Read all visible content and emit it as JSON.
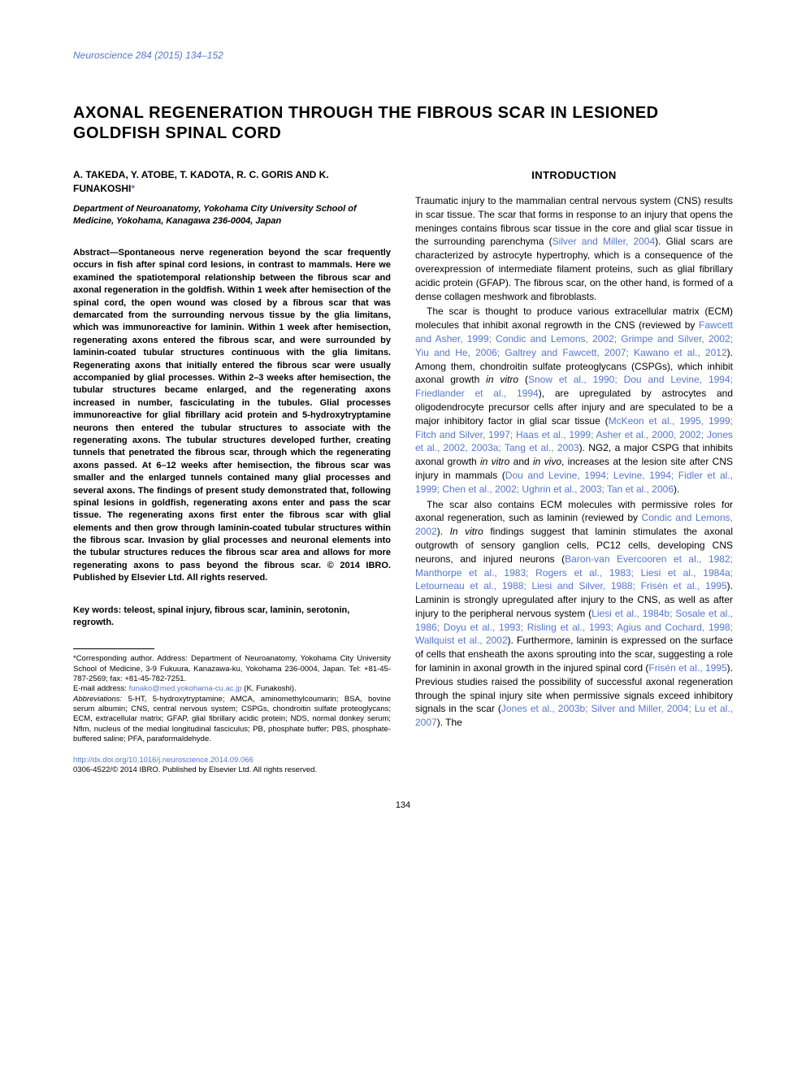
{
  "journal": {
    "name": "Neuroscience",
    "citation": "284 (2015) 134–152"
  },
  "title": "AXONAL REGENERATION THROUGH THE FIBROUS SCAR IN LESIONED GOLDFISH SPINAL CORD",
  "authors_line": "A. TAKEDA, Y. ATOBE, T. KADOTA, R. C. GORIS AND K. FUNAKOSHI",
  "corr_marker": "*",
  "affiliation": "Department of Neuroanatomy, Yokohama City University School of Medicine, Yokohama, Kanagawa 236-0004, Japan",
  "abstract_label": "Abstract—",
  "abstract_body": "Spontaneous nerve regeneration beyond the scar frequently occurs in fish after spinal cord lesions, in contrast to mammals. Here we examined the spatiotemporal relationship between the fibrous scar and axonal regeneration in the goldfish. Within 1 week after hemisection of the spinal cord, the open wound was closed by a fibrous scar that was demarcated from the surrounding nervous tissue by the glia limitans, which was immunoreactive for laminin. Within 1 week after hemisection, regenerating axons entered the fibrous scar, and were surrounded by laminin-coated tubular structures continuous with the glia limitans. Regenerating axons that initially entered the fibrous scar were usually accompanied by glial processes. Within 2–3 weeks after hemisection, the tubular structures became enlarged, and the regenerating axons increased in number, fasciculating in the tubules. Glial processes immunoreactive for glial fibrillary acid protein and 5-hydroxytryptamine neurons then entered the tubular structures to associate with the regenerating axons. The tubular structures developed further, creating tunnels that penetrated the fibrous scar, through which the regenerating axons passed. At 6–12 weeks after hemisection, the fibrous scar was smaller and the enlarged tunnels contained many glial processes and several axons.  The findings of present study demonstrated that, following spinal lesions in goldfish, regenerating axons enter and pass the scar tissue. The regenerating axons first enter the fibrous scar with glial elements and then grow through laminin-coated tubular structures within the fibrous scar. Invasion by glial processes and neuronal elements into the tubular structures reduces the fibrous scar area and allows for more regenerating axons to pass beyond the fibrous scar. © 2014 IBRO. Published by Elsevier Ltd. All rights reserved.",
  "keywords_label": "Key words:",
  "keywords_body": "teleost, spinal injury, fibrous scar, laminin, serotonin, regrowth.",
  "footnote_corr": "*Corresponding author. Address: Department of Neuroanatomy, Yokohama City University School of Medicine, 3-9 Fukuura, Kanazawa-ku, Yokohama 236-0004, Japan. Tel: +81-45-787-2569; fax: +81-45-782-7251.",
  "footnote_email_label": "E-mail address: ",
  "footnote_email": "funako@med.yokohama-cu.ac.jp",
  "footnote_email_who": " (K. Funakoshi).",
  "abbrev_label": "Abbreviations:",
  "abbrev_body": " 5-HT, 5-hydroxytryptamine; AMCA, aminomethylcoumarin; BSA, bovine serum albumin; CNS, central nervous system; CSPGs, chondroitin sulfate proteoglycans; ECM, extracellular matrix; GFAP, glial fibrillary acidic protein; NDS, normal donkey serum; Nflm, nucleus of the medial longitudinal fasciculus; PB, phosphate buffer; PBS, phosphate-buffered saline; PFA, paraformaldehyde.",
  "doi": "http://dx.doi.org/10.1016/j.neuroscience.2014.09.066",
  "issn_copyright": "0306-4522/© 2014 IBRO. Published by Elsevier Ltd. All rights reserved.",
  "intro_heading": "INTRODUCTION",
  "intro_p1a": "Traumatic injury to the mammalian central nervous system (CNS) results in scar tissue. The scar that forms in response to an injury that opens the meninges contains fibrous scar tissue in the core and glial scar tissue in the surrounding parenchyma (",
  "intro_p1_cite1": "Silver and Miller, 2004",
  "intro_p1b": "). Glial scars are characterized by astrocyte hypertrophy, which is a consequence of the overexpression of intermediate filament proteins, such as glial fibrillary acidic protein (GFAP). The fibrous scar, on the other hand, is formed of a dense collagen meshwork and fibroblasts.",
  "intro_p2a": "The scar is thought to produce various extracellular matrix (ECM) molecules that inhibit axonal regrowth in the CNS (reviewed by ",
  "intro_p2_cite1": "Fawcett and Asher, 1999; Condic and Lemons, 2002; Grimpe and Silver, 2002; Yiu and He, 2006; Galtrey and Fawcett, 2007; Kawano et al., 2012",
  "intro_p2b": "). Among them, chondroitin sulfate proteoglycans (CSPGs), which inhibit axonal growth ",
  "intro_p2_ital1": "in vitro",
  "intro_p2c": " (",
  "intro_p2_cite2": "Snow et al., 1990; Dou and Levine, 1994; Friedlander et al., 1994",
  "intro_p2d": "), are upregulated by astrocytes and oligodendrocyte precursor cells after injury and are speculated to be a major inhibitory factor in glial scar tissue (",
  "intro_p2_cite3": "McKeon et al., 1995, 1999; Fitch and Silver, 1997; Haas et al., 1999; Asher et al., 2000, 2002; Jones et al., 2002, 2003a; Tang et al., 2003",
  "intro_p2e": "). NG2, a major CSPG that inhibits axonal growth ",
  "intro_p2_ital2": "in vitro",
  "intro_p2f": " and ",
  "intro_p2_ital3": "in vivo",
  "intro_p2g": ", increases at the lesion site after CNS injury in mammals (",
  "intro_p2_cite4": "Dou and Levine, 1994; Levine, 1994; Fidler et al., 1999; Chen et al., 2002; Ughrin et al., 2003; Tan et al., 2006",
  "intro_p2h": ").",
  "intro_p3a": "The scar also contains ECM molecules with permissive roles for axonal regeneration, such as laminin (reviewed by ",
  "intro_p3_cite1": "Condic and Lemons, 2002",
  "intro_p3b": "). ",
  "intro_p3_ital1": "In vitro",
  "intro_p3c": " findings suggest that laminin stimulates the axonal outgrowth of sensory ganglion cells, PC12 cells, developing CNS neurons, and injured neurons (",
  "intro_p3_cite2": "Baron-van Evercooren et al., 1982; Manthorpe et al., 1983; Rogers et al., 1983; Liesi et al., 1984a; Letourneau et al., 1988; Liesi and Silver, 1988; Frisén et al., 1995",
  "intro_p3d": "). Laminin is strongly upregulated after injury to the CNS, as well as after injury to the peripheral nervous system (",
  "intro_p3_cite3": "Liesi et al., 1984b; Sosale et al., 1986; Doyu et al., 1993; Risling et al., 1993; Agius and Cochard, 1998; Wallquist et al., 2002",
  "intro_p3e": "). Furthermore, laminin is expressed on the surface of cells that ensheath the axons sprouting into the scar, suggesting a role for laminin in axonal growth in the injured spinal cord (",
  "intro_p3_cite4": "Frisén et al., 1995",
  "intro_p3f": "). Previous studies raised the possibility of successful axonal regeneration through the spinal injury site when permissive signals exceed inhibitory signals in the scar (",
  "intro_p3_cite5": "Jones et al., 2003b; Silver and Miller, 2004; Lu et al., 2007",
  "intro_p3g": "). The",
  "pagenum": "134",
  "colors": {
    "link": "#5577cc",
    "text": "#000000",
    "background": "#ffffff"
  },
  "typography": {
    "body_pt": 12,
    "title_pt": 20,
    "abstract_pt": 11,
    "footnote_pt": 9.5
  }
}
